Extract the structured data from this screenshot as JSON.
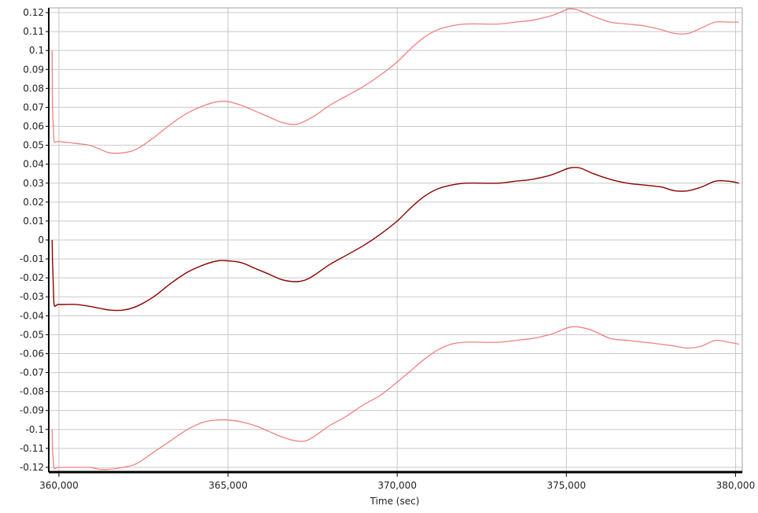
{
  "chart_data": {
    "type": "line",
    "title": "",
    "xlabel": "Time (sec)",
    "ylabel": "",
    "xlim": [
      359700,
      380200
    ],
    "ylim": [
      -0.1225,
      0.1225
    ],
    "grid": true,
    "x_ticks": [
      360000,
      365000,
      370000,
      375000,
      380000
    ],
    "x_tick_labels": [
      "360,000",
      "365,000",
      "370,000",
      "375,000",
      "380,000"
    ],
    "y_ticks": [
      0.12,
      0.11,
      0.1,
      0.09,
      0.08,
      0.07,
      0.06,
      0.05,
      0.04,
      0.03,
      0.02,
      0.01,
      0,
      -0.01,
      -0.02,
      -0.03,
      -0.04,
      -0.05,
      -0.06,
      -0.07,
      -0.08,
      -0.09,
      -0.1,
      -0.11,
      -0.12
    ],
    "y_tick_labels": [
      "0.12",
      "0.11",
      "0.1",
      "0.09",
      "0.08",
      "0.07",
      "0.06",
      "0.05",
      "0.04",
      "0.03",
      "0.02",
      "0.01",
      "0",
      "-0.01",
      "-0.02",
      "-0.03",
      "-0.04",
      "-0.05",
      "-0.06",
      "-0.07",
      "-0.08",
      "-0.09",
      "-0.1",
      "-0.11",
      "-0.12"
    ],
    "colors": {
      "upper": "#f08080",
      "middle": "#8b0000",
      "lower": "#f08080",
      "grid": "#c8c8c8",
      "axis": "#000000"
    },
    "series": [
      {
        "color": "#f08080",
        "x": [
          359800,
          359810,
          359850,
          360000,
          360500,
          360900,
          361200,
          361500,
          361900,
          362300,
          362800,
          363300,
          363800,
          364300,
          364700,
          365000,
          365400,
          365800,
          366200,
          366600,
          367000,
          367300,
          367600,
          368000,
          368500,
          369000,
          369500,
          370000,
          370400,
          370800,
          371200,
          371600,
          372000,
          372500,
          373000,
          373500,
          374000,
          374500,
          374800,
          375100,
          375400,
          375800,
          376300,
          376800,
          377300,
          377800,
          378200,
          378600,
          379000,
          379400,
          379800,
          380100
        ],
        "y": [
          0.1,
          0.07,
          0.053,
          0.052,
          0.051,
          0.05,
          0.048,
          0.046,
          0.046,
          0.048,
          0.054,
          0.061,
          0.067,
          0.071,
          0.073,
          0.073,
          0.071,
          0.068,
          0.065,
          0.062,
          0.061,
          0.063,
          0.066,
          0.071,
          0.076,
          0.081,
          0.087,
          0.094,
          0.101,
          0.107,
          0.111,
          0.113,
          0.114,
          0.114,
          0.114,
          0.115,
          0.116,
          0.118,
          0.12,
          0.122,
          0.121,
          0.118,
          0.115,
          0.114,
          0.113,
          0.111,
          0.109,
          0.109,
          0.112,
          0.115,
          0.115,
          0.115
        ]
      },
      {
        "color": "#8b0000",
        "x": [
          359800,
          359810,
          359850,
          360000,
          360500,
          360900,
          361200,
          361500,
          361900,
          362300,
          362800,
          363300,
          363800,
          364300,
          364700,
          365000,
          365400,
          365800,
          366200,
          366600,
          367000,
          367300,
          367600,
          368000,
          368500,
          369000,
          369500,
          370000,
          370400,
          370800,
          371200,
          371600,
          372000,
          372500,
          373000,
          373500,
          374000,
          374500,
          374800,
          375100,
          375400,
          375800,
          376300,
          376800,
          377300,
          377800,
          378200,
          378600,
          379000,
          379400,
          379800,
          380100
        ],
        "y": [
          0.0,
          -0.01,
          -0.033,
          -0.034,
          -0.034,
          -0.035,
          -0.036,
          -0.037,
          -0.037,
          -0.035,
          -0.03,
          -0.023,
          -0.017,
          -0.013,
          -0.011,
          -0.011,
          -0.012,
          -0.015,
          -0.018,
          -0.021,
          -0.022,
          -0.021,
          -0.018,
          -0.013,
          -0.008,
          -0.003,
          0.003,
          0.01,
          0.017,
          0.023,
          0.027,
          0.029,
          0.03,
          0.03,
          0.03,
          0.031,
          0.032,
          0.034,
          0.036,
          0.038,
          0.038,
          0.035,
          0.032,
          0.03,
          0.029,
          0.028,
          0.026,
          0.026,
          0.028,
          0.031,
          0.031,
          0.03
        ]
      },
      {
        "color": "#f08080",
        "x": [
          359800,
          359810,
          359850,
          360000,
          360500,
          360900,
          361200,
          361500,
          361900,
          362300,
          362800,
          363300,
          363800,
          364300,
          364700,
          365000,
          365400,
          365800,
          366200,
          366600,
          367000,
          367300,
          367600,
          368000,
          368500,
          369000,
          369500,
          370000,
          370400,
          370800,
          371200,
          371600,
          372000,
          372500,
          373000,
          373500,
          374000,
          374500,
          374800,
          375100,
          375400,
          375800,
          376300,
          376800,
          377300,
          377800,
          378200,
          378600,
          379000,
          379400,
          379800,
          380100
        ],
        "y": [
          -0.1,
          -0.11,
          -0.12,
          -0.12,
          -0.12,
          -0.12,
          -0.121,
          -0.121,
          -0.12,
          -0.118,
          -0.112,
          -0.106,
          -0.1,
          -0.096,
          -0.095,
          -0.095,
          -0.096,
          -0.098,
          -0.101,
          -0.104,
          -0.106,
          -0.106,
          -0.103,
          -0.098,
          -0.093,
          -0.087,
          -0.082,
          -0.075,
          -0.069,
          -0.063,
          -0.058,
          -0.055,
          -0.054,
          -0.054,
          -0.054,
          -0.053,
          -0.052,
          -0.05,
          -0.048,
          -0.046,
          -0.046,
          -0.048,
          -0.052,
          -0.053,
          -0.054,
          -0.055,
          -0.056,
          -0.057,
          -0.056,
          -0.053,
          -0.054,
          -0.055
        ]
      }
    ]
  }
}
